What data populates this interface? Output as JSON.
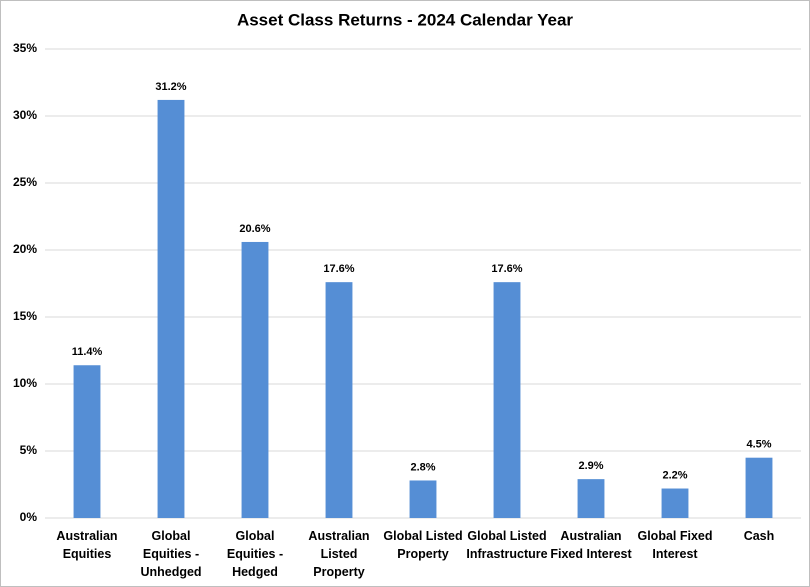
{
  "chart_data": {
    "type": "bar",
    "title": "Asset Class Returns - 2024 Calendar Year",
    "categories": [
      "Australian Equities",
      "Global Equities - Unhedged",
      "Global Equities - Hedged",
      "Australian Listed Property",
      "Global Listed Property",
      "Global Listed Infrastructure",
      "Australian Fixed Interest",
      "Global Fixed Interest",
      "Cash"
    ],
    "values": [
      11.4,
      31.2,
      20.6,
      17.6,
      2.8,
      17.6,
      2.9,
      2.2,
      4.5
    ],
    "value_labels": [
      "11.4%",
      "31.2%",
      "20.6%",
      "17.6%",
      "2.8%",
      "17.6%",
      "2.9%",
      "2.2%",
      "4.5%"
    ],
    "color": "#558ed5",
    "ylim": [
      0,
      35
    ],
    "yticks": [
      {
        "value": 0,
        "label": "0%"
      },
      {
        "value": 5,
        "label": "5%"
      },
      {
        "value": 10,
        "label": "10%"
      },
      {
        "value": 15,
        "label": "15%"
      },
      {
        "value": 20,
        "label": "20%"
      },
      {
        "value": 25,
        "label": "25%"
      },
      {
        "value": 30,
        "label": "30%"
      },
      {
        "value": 35,
        "label": "35%"
      }
    ],
    "grid": true
  }
}
